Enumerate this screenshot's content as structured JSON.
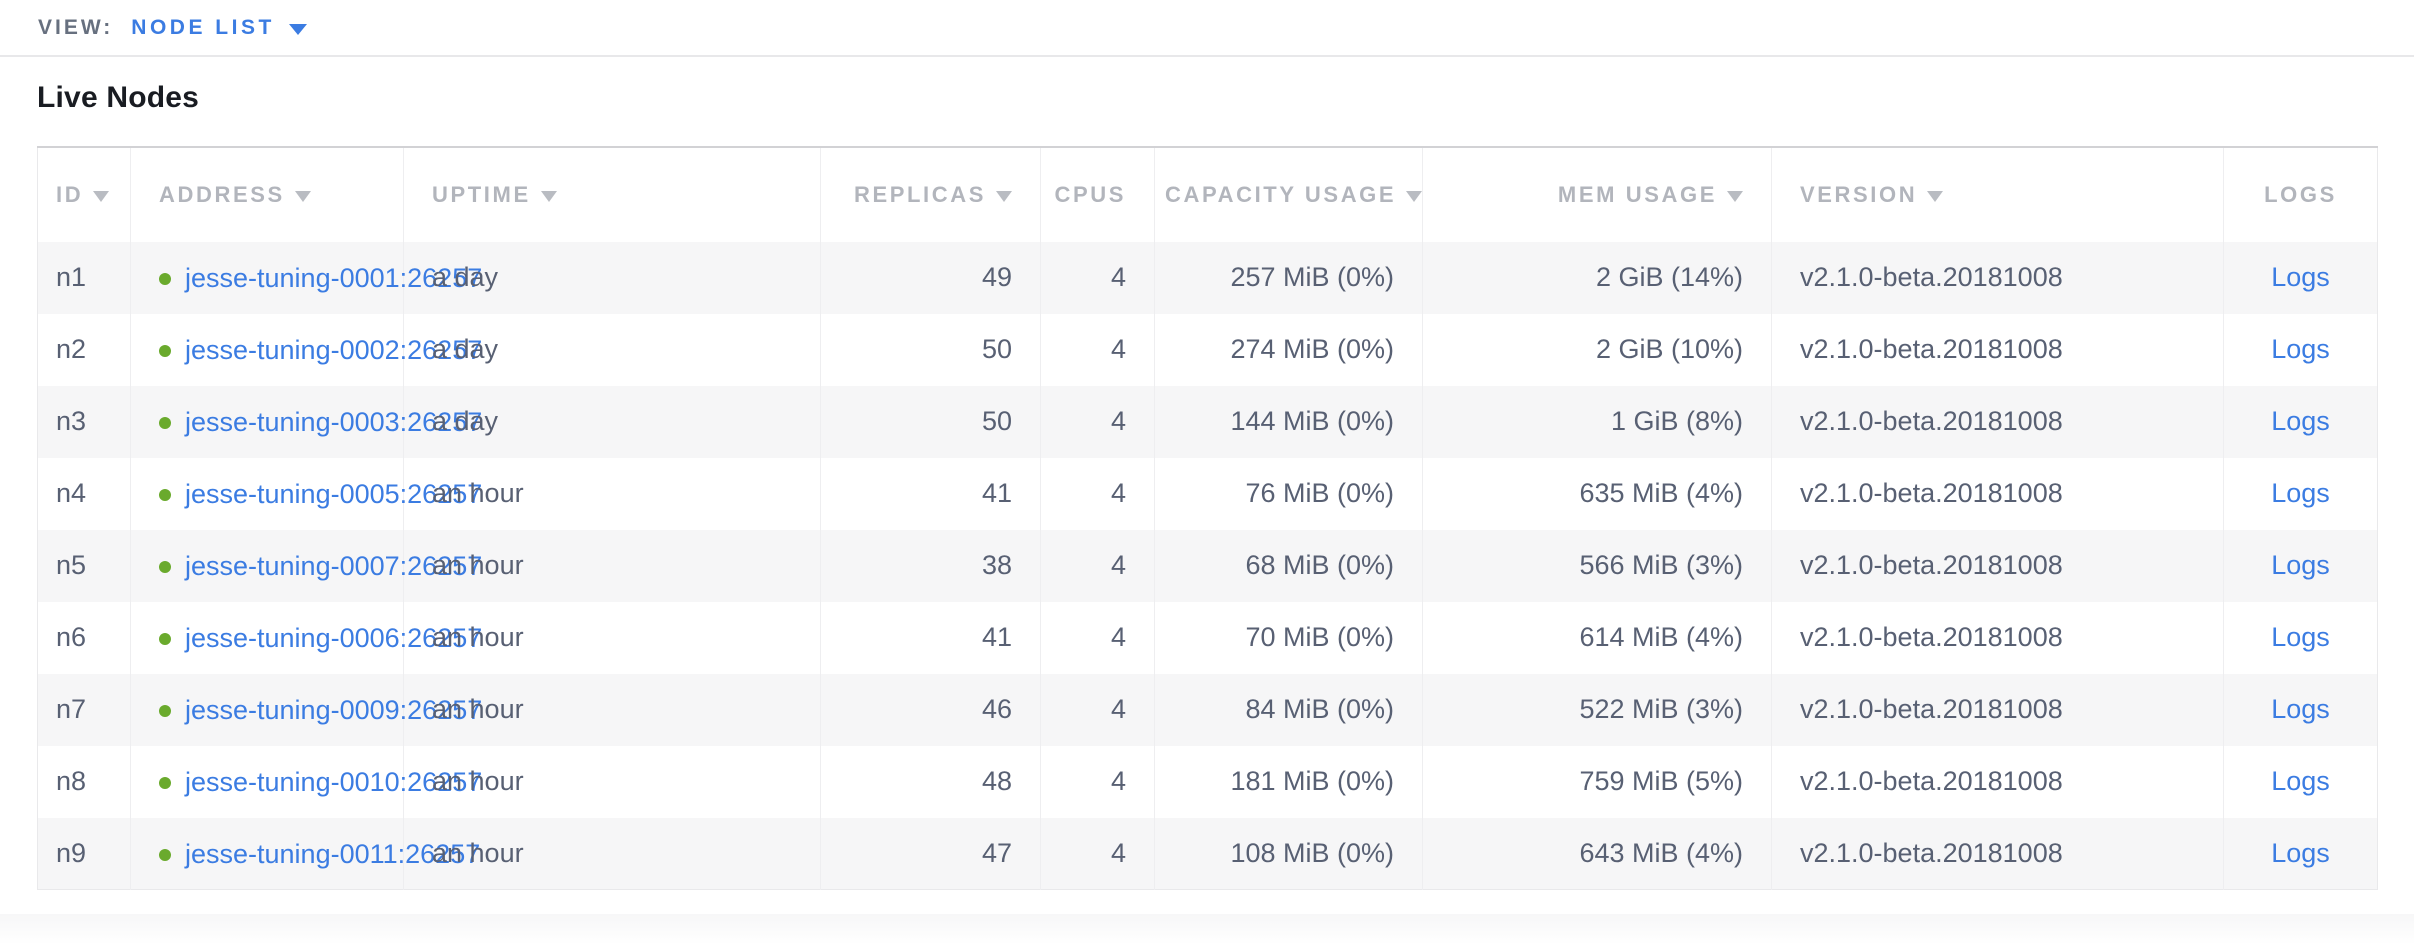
{
  "topbar": {
    "view_label": "VIEW:",
    "view_value": "NODE LIST"
  },
  "title": "Live Nodes",
  "table": {
    "columns": [
      {
        "key": "id",
        "label": "ID",
        "sortable": true,
        "align": "left"
      },
      {
        "key": "address",
        "label": "ADDRESS",
        "sortable": true,
        "align": "left"
      },
      {
        "key": "uptime",
        "label": "UPTIME",
        "sortable": true,
        "align": "left"
      },
      {
        "key": "replicas",
        "label": "REPLICAS",
        "sortable": true,
        "align": "right"
      },
      {
        "key": "cpus",
        "label": "CPUS",
        "sortable": false,
        "align": "right"
      },
      {
        "key": "capacity",
        "label": "CAPACITY USAGE",
        "sortable": true,
        "align": "right"
      },
      {
        "key": "mem",
        "label": "MEM USAGE",
        "sortable": true,
        "align": "right"
      },
      {
        "key": "version",
        "label": "VERSION",
        "sortable": true,
        "align": "left"
      },
      {
        "key": "logs",
        "label": "LOGS",
        "sortable": false,
        "align": "center"
      }
    ],
    "rows": [
      {
        "id": "n1",
        "address": "jesse-tuning-0001:26257",
        "status": "healthy",
        "uptime": "a day",
        "replicas": "49",
        "cpus": "4",
        "capacity": "257 MiB (0%)",
        "mem": "2 GiB (14%)",
        "version": "v2.1.0-beta.20181008",
        "logs": "Logs"
      },
      {
        "id": "n2",
        "address": "jesse-tuning-0002:26257",
        "status": "healthy",
        "uptime": "a day",
        "replicas": "50",
        "cpus": "4",
        "capacity": "274 MiB (0%)",
        "mem": "2 GiB (10%)",
        "version": "v2.1.0-beta.20181008",
        "logs": "Logs"
      },
      {
        "id": "n3",
        "address": "jesse-tuning-0003:26257",
        "status": "healthy",
        "uptime": "a day",
        "replicas": "50",
        "cpus": "4",
        "capacity": "144 MiB (0%)",
        "mem": "1 GiB (8%)",
        "version": "v2.1.0-beta.20181008",
        "logs": "Logs"
      },
      {
        "id": "n4",
        "address": "jesse-tuning-0005:26257",
        "status": "healthy",
        "uptime": "an hour",
        "replicas": "41",
        "cpus": "4",
        "capacity": "76 MiB (0%)",
        "mem": "635 MiB (4%)",
        "version": "v2.1.0-beta.20181008",
        "logs": "Logs"
      },
      {
        "id": "n5",
        "address": "jesse-tuning-0007:26257",
        "status": "healthy",
        "uptime": "an hour",
        "replicas": "38",
        "cpus": "4",
        "capacity": "68 MiB (0%)",
        "mem": "566 MiB (3%)",
        "version": "v2.1.0-beta.20181008",
        "logs": "Logs"
      },
      {
        "id": "n6",
        "address": "jesse-tuning-0006:26257",
        "status": "healthy",
        "uptime": "an hour",
        "replicas": "41",
        "cpus": "4",
        "capacity": "70 MiB (0%)",
        "mem": "614 MiB (4%)",
        "version": "v2.1.0-beta.20181008",
        "logs": "Logs"
      },
      {
        "id": "n7",
        "address": "jesse-tuning-0009:26257",
        "status": "healthy",
        "uptime": "an hour",
        "replicas": "46",
        "cpus": "4",
        "capacity": "84 MiB (0%)",
        "mem": "522 MiB (3%)",
        "version": "v2.1.0-beta.20181008",
        "logs": "Logs"
      },
      {
        "id": "n8",
        "address": "jesse-tuning-0010:26257",
        "status": "healthy",
        "uptime": "an hour",
        "replicas": "48",
        "cpus": "4",
        "capacity": "181 MiB (0%)",
        "mem": "759 MiB (5%)",
        "version": "v2.1.0-beta.20181008",
        "logs": "Logs"
      },
      {
        "id": "n9",
        "address": "jesse-tuning-0011:26257",
        "status": "healthy",
        "uptime": "an hour",
        "replicas": "47",
        "cpus": "4",
        "capacity": "108 MiB (0%)",
        "mem": "643 MiB (4%)",
        "version": "v2.1.0-beta.20181008",
        "logs": "Logs"
      }
    ]
  },
  "colors": {
    "link_blue": "#3b7ce2",
    "healthy_dot_green": "#6aaa2d",
    "header_text_gray": "#b2b5bc",
    "body_text_slate": "#586073",
    "stripe_gray": "#f6f6f7"
  }
}
